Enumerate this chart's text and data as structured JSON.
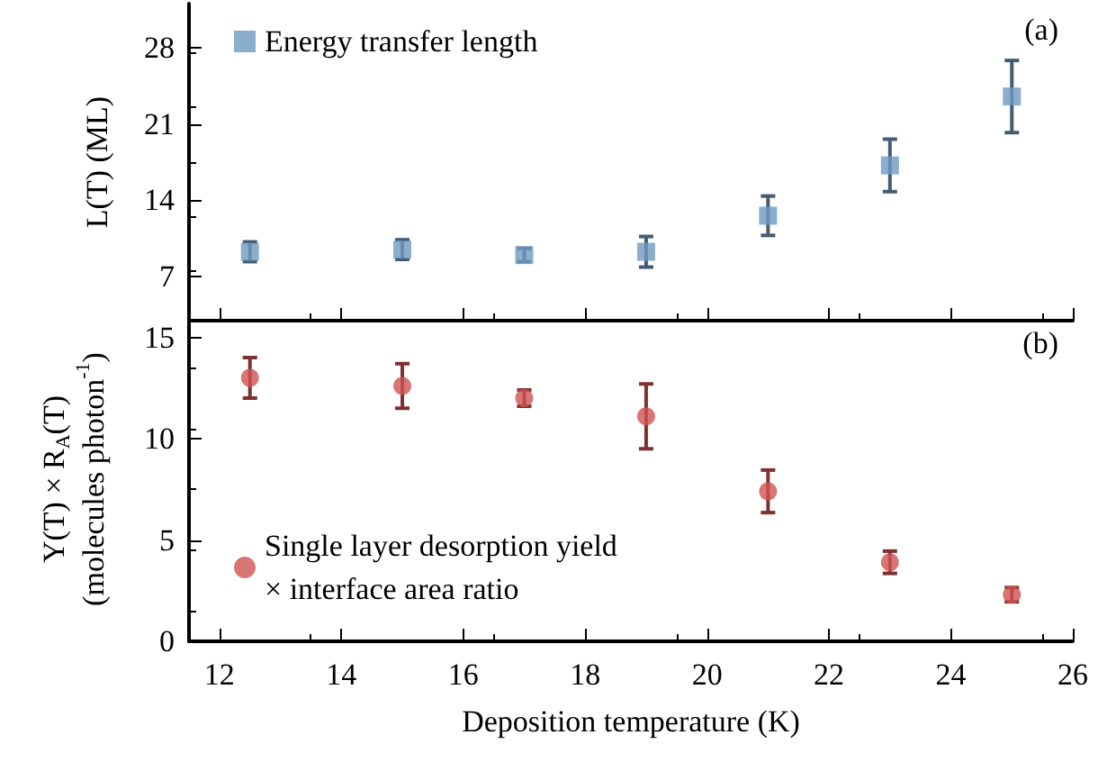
{
  "chart_data": [
    {
      "type": "scatter",
      "ylabel": "L(T) (ML)",
      "annotations": [
        "(a)"
      ],
      "x": [
        12.5,
        15,
        17,
        19,
        21,
        23,
        25
      ],
      "series": [
        {
          "name": "Energy transfer length",
          "color": "#6f9ac0",
          "values": [
            9.3,
            9.5,
            9.0,
            9.3,
            12.6,
            17.2,
            23.5
          ],
          "errors": [
            0.9,
            0.9,
            0.6,
            1.4,
            1.8,
            2.4,
            3.3
          ]
        }
      ],
      "xlim": [
        11.5,
        26
      ],
      "xticks": [
        12,
        14,
        16,
        18,
        20,
        22,
        24,
        26
      ],
      "ylim": [
        3,
        32
      ],
      "yticks": [
        7,
        14,
        21,
        28
      ],
      "tick_labels": "y",
      "marker": "square",
      "legend": "top left",
      "grid": false
    },
    {
      "type": "scatter",
      "xlabel": "Deposition temperature (K)",
      "ylabel": "Y(T) × R$_{A}$(T)\n(molecules photon$^{-1}$)",
      "annotations": [
        "(b)"
      ],
      "x": [
        12.5,
        15,
        17,
        19,
        21,
        23,
        25
      ],
      "series": [
        {
          "name": "Single layer desorption yield\n× interface area ratio",
          "color": "#d05252",
          "values": [
            13.0,
            12.6,
            12.0,
            11.1,
            7.4,
            3.9,
            2.3
          ],
          "errors": [
            1.0,
            1.1,
            0.4,
            1.6,
            1.05,
            0.55,
            0.35
          ]
        }
      ],
      "xlim": [
        11.5,
        26
      ],
      "xticks": [
        12,
        14,
        16,
        18,
        20,
        22,
        24,
        26
      ],
      "ylim": [
        0,
        16
      ],
      "yticks": [
        0,
        5,
        10,
        15
      ],
      "marker": "circle",
      "legend": "bottom left",
      "grid": false
    }
  ]
}
